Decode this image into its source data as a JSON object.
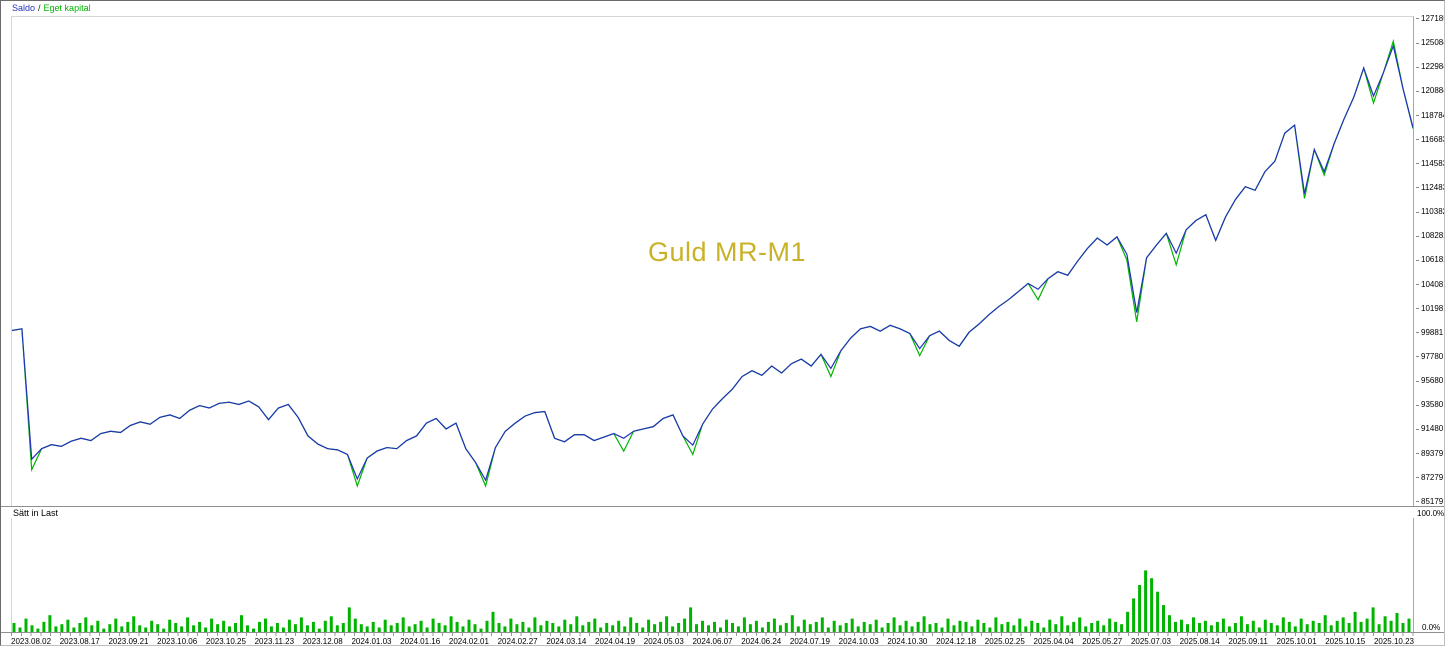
{
  "title": "Guld MR-M1",
  "legend": {
    "balance_label": "Saldo",
    "separator": "/",
    "equity_label": "Eget kapital"
  },
  "lower_panel": {
    "label": "Sätt in Last",
    "max_label": "100.0%",
    "min_label": "0.0%"
  },
  "colors": {
    "balance": "#2233bb",
    "equity": "#00b400",
    "bars": "#00b400",
    "title": "#c9b227",
    "axis_text": "#000000"
  },
  "y_axis": {
    "labels": [
      "127185",
      "125084",
      "122984",
      "120884",
      "118784",
      "116683",
      "114583",
      "112483",
      "110382",
      "108282",
      "106182",
      "104081",
      "101981",
      "99881",
      "97780",
      "95680",
      "93580",
      "91480",
      "89379",
      "87279",
      "85179"
    ]
  },
  "x_axis": {
    "labels": [
      "2023.08.02",
      "2023.08.17",
      "2023.09.21",
      "2023.10.06",
      "2023.10.25",
      "2023.11.23",
      "2023.12.08",
      "2024.01.03",
      "2024.01.16",
      "2024.02.01",
      "2024.02.27",
      "2024.03.14",
      "2024.04.19",
      "2024.05.03",
      "2024.06.07",
      "2024.06.24",
      "2024.07.19",
      "2024.10.03",
      "2024.10.30",
      "2024.12.18",
      "2025.02.25",
      "2025.04.04",
      "2025.05.27",
      "2025.07.03",
      "2025.08.14",
      "2025.09.11",
      "2025.10.01",
      "2025.10.15",
      "2025.10.23"
    ]
  },
  "chart_data": [
    {
      "type": "line",
      "title": "Guld MR-M1",
      "x_unit": "trades (dated ticks)",
      "grid": false,
      "legend_position": "top-left",
      "ylim": [
        85179,
        127185
      ],
      "series": [
        {
          "name": "Saldo",
          "values": [
            100250,
            100400,
            89200,
            90100,
            90450,
            90300,
            90750,
            91000,
            90800,
            91400,
            91600,
            91500,
            92100,
            92400,
            92200,
            92800,
            93000,
            92700,
            93400,
            93800,
            93600,
            94000,
            94100,
            93900,
            94200,
            93700,
            92600,
            93600,
            93900,
            92800,
            91200,
            90500,
            90100,
            90000,
            89600,
            87500,
            89300,
            89900,
            90200,
            90100,
            90800,
            91200,
            92300,
            92700,
            91800,
            92300,
            90100,
            88900,
            87400,
            90200,
            91600,
            92300,
            92900,
            93200,
            93300,
            91000,
            90700,
            91300,
            91300,
            90800,
            91100,
            91400,
            91000,
            91600,
            91800,
            92000,
            92700,
            93000,
            91200,
            90400,
            92200,
            93500,
            94400,
            95200,
            96300,
            96800,
            96400,
            97200,
            96600,
            97400,
            97800,
            97200,
            98200,
            97000,
            98500,
            99600,
            100400,
            100600,
            100200,
            100700,
            100400,
            100000,
            98700,
            99800,
            100200,
            99400,
            98900,
            100100,
            100800,
            101600,
            102300,
            102900,
            103600,
            104300,
            103800,
            104700,
            105300,
            105000,
            106200,
            107300,
            108200,
            107600,
            108300,
            106800,
            101800,
            106500,
            107600,
            108600,
            106900,
            108900,
            109700,
            110200,
            108000,
            110000,
            111500,
            112600,
            112300,
            113900,
            114800,
            117200,
            117900,
            112000,
            115800,
            113900,
            116300,
            118400,
            120300,
            122800,
            120400,
            122400,
            124700,
            121000,
            117700
          ]
        },
        {
          "name": "Eget kapital",
          "values": [
            100250,
            100400,
            88300,
            90100,
            90450,
            90300,
            90750,
            91000,
            90800,
            91400,
            91600,
            91500,
            92100,
            92400,
            92200,
            92800,
            93000,
            92700,
            93400,
            93800,
            93600,
            94000,
            94100,
            93900,
            94200,
            93700,
            92600,
            93600,
            93900,
            92800,
            91200,
            90500,
            90100,
            90000,
            89600,
            86900,
            89300,
            89900,
            90200,
            90100,
            90800,
            91200,
            92300,
            92700,
            91800,
            92300,
            90100,
            88900,
            86900,
            90200,
            91600,
            92300,
            92900,
            93200,
            93300,
            91000,
            90700,
            91300,
            91300,
            90800,
            91100,
            91400,
            89900,
            91600,
            91800,
            92000,
            92700,
            93000,
            91200,
            89600,
            92200,
            93500,
            94400,
            95200,
            96300,
            96800,
            96400,
            97200,
            96600,
            97400,
            97800,
            97200,
            98200,
            96300,
            98500,
            99600,
            100400,
            100600,
            100200,
            100700,
            100400,
            100000,
            98100,
            99800,
            100200,
            99400,
            98900,
            100100,
            100800,
            101600,
            102300,
            102900,
            103600,
            104300,
            102900,
            104700,
            105300,
            105000,
            106200,
            107300,
            108200,
            107600,
            108300,
            106300,
            101000,
            106500,
            107600,
            108600,
            105900,
            108900,
            109700,
            110200,
            108000,
            110000,
            111500,
            112600,
            112300,
            113900,
            114800,
            117200,
            117900,
            111600,
            115800,
            113600,
            116300,
            118400,
            120300,
            122800,
            119800,
            122400,
            125100,
            121000,
            117600
          ]
        }
      ]
    },
    {
      "type": "bar",
      "name": "Sätt in Last",
      "ylim": [
        0,
        100
      ],
      "unit": "%",
      "values": [
        8,
        4,
        12,
        6,
        3,
        9,
        15,
        5,
        7,
        11,
        4,
        8,
        13,
        6,
        10,
        3,
        7,
        12,
        5,
        9,
        14,
        6,
        4,
        10,
        7,
        3,
        11,
        8,
        5,
        13,
        6,
        9,
        4,
        12,
        7,
        10,
        5,
        8,
        15,
        6,
        3,
        9,
        12,
        5,
        8,
        4,
        11,
        7,
        13,
        6,
        9,
        3,
        10,
        14,
        6,
        8,
        22,
        12,
        7,
        5,
        9,
        4,
        11,
        6,
        8,
        13,
        5,
        7,
        10,
        4,
        12,
        8,
        6,
        14,
        9,
        5,
        11,
        7,
        3,
        10,
        18,
        8,
        5,
        12,
        7,
        9,
        4,
        13,
        6,
        10,
        8,
        5,
        11,
        7,
        14,
        6,
        9,
        12,
        4,
        8,
        6,
        10,
        5,
        13,
        8,
        4,
        11,
        7,
        9,
        14,
        5,
        8,
        12,
        22,
        7,
        10,
        6,
        9,
        4,
        11,
        8,
        5,
        13,
        7,
        10,
        4,
        9,
        12,
        6,
        8,
        15,
        5,
        11,
        7,
        9,
        13,
        4,
        10,
        6,
        8,
        12,
        5,
        9,
        7,
        11,
        4,
        8,
        13,
        6,
        10,
        5,
        9,
        14,
        7,
        8,
        4,
        12,
        6,
        10,
        9,
        5,
        11,
        8,
        4,
        13,
        7,
        9,
        6,
        12,
        5,
        10,
        8,
        4,
        11,
        7,
        14,
        6,
        9,
        13,
        5,
        8,
        10,
        6,
        12,
        9,
        7,
        18,
        30,
        42,
        55,
        48,
        36,
        24,
        15,
        9,
        11,
        7,
        13,
        8,
        10,
        6,
        9,
        12,
        5,
        8,
        14,
        7,
        10,
        4,
        11,
        8,
        6,
        13,
        9,
        5,
        12,
        7,
        10,
        8,
        15,
        6,
        10,
        13,
        8,
        18,
        9,
        12,
        22,
        7,
        14,
        10,
        17,
        8,
        12
      ]
    }
  ]
}
